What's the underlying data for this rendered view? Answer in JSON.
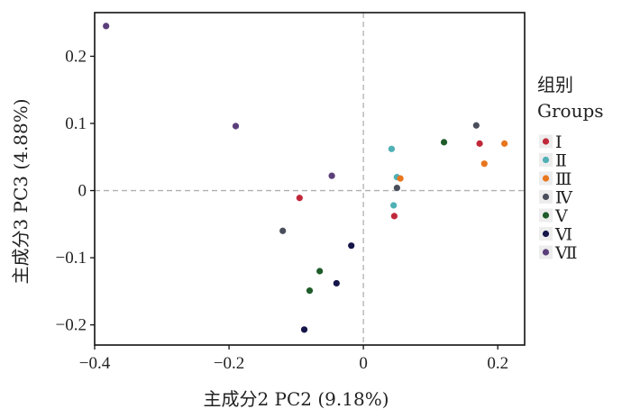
{
  "chart_data": {
    "type": "scatter",
    "xlabel": "主成分2 PC2 (9.18%)",
    "ylabel": "主成分3 PC3 (4.88%)",
    "xlim": [
      -0.4,
      0.24
    ],
    "ylim": [
      -0.23,
      0.265
    ],
    "xticks": [
      {
        "value": -0.4,
        "label": "−0.4"
      },
      {
        "value": -0.2,
        "label": "−0.2"
      },
      {
        "value": 0,
        "label": "0"
      },
      {
        "value": 0.2,
        "label": "0.2"
      }
    ],
    "yticks": [
      {
        "value": 0.2,
        "label": "0.2"
      },
      {
        "value": 0.1,
        "label": "0.1"
      },
      {
        "value": 0,
        "label": "0"
      },
      {
        "value": -0.1,
        "label": "−0.1"
      },
      {
        "value": -0.2,
        "label": "−0.2"
      }
    ],
    "zero_lines": true,
    "grid": false,
    "legend": {
      "placement": "right",
      "title_line1": "组别",
      "title_line2": "Groups"
    },
    "series": [
      {
        "name": "Ⅰ",
        "color": "#c0283a",
        "points": [
          [
            -0.095,
            -0.011
          ],
          [
            0.046,
            -0.038
          ],
          [
            0.173,
            0.07
          ]
        ]
      },
      {
        "name": "Ⅱ",
        "color": "#4fb0b5",
        "points": [
          [
            0.042,
            0.062
          ],
          [
            0.05,
            0.02
          ],
          [
            0.045,
            -0.022
          ]
        ]
      },
      {
        "name": "Ⅲ",
        "color": "#e8761e",
        "points": [
          [
            0.055,
            0.018
          ],
          [
            0.18,
            0.04
          ],
          [
            0.21,
            0.07
          ]
        ]
      },
      {
        "name": "Ⅳ",
        "color": "#4a4e5c",
        "points": [
          [
            -0.12,
            -0.06
          ],
          [
            0.05,
            0.004
          ],
          [
            0.168,
            0.097
          ]
        ]
      },
      {
        "name": "Ⅴ",
        "color": "#1e5c2a",
        "points": [
          [
            -0.065,
            -0.12
          ],
          [
            -0.08,
            -0.149
          ],
          [
            0.12,
            0.072
          ]
        ]
      },
      {
        "name": "Ⅵ",
        "color": "#15154a",
        "points": [
          [
            -0.018,
            -0.082
          ],
          [
            -0.04,
            -0.138
          ],
          [
            -0.088,
            -0.207
          ]
        ]
      },
      {
        "name": "Ⅶ",
        "color": "#5b3f7a",
        "points": [
          [
            -0.383,
            0.245
          ],
          [
            -0.19,
            0.096
          ],
          [
            -0.047,
            0.022
          ]
        ]
      }
    ]
  }
}
